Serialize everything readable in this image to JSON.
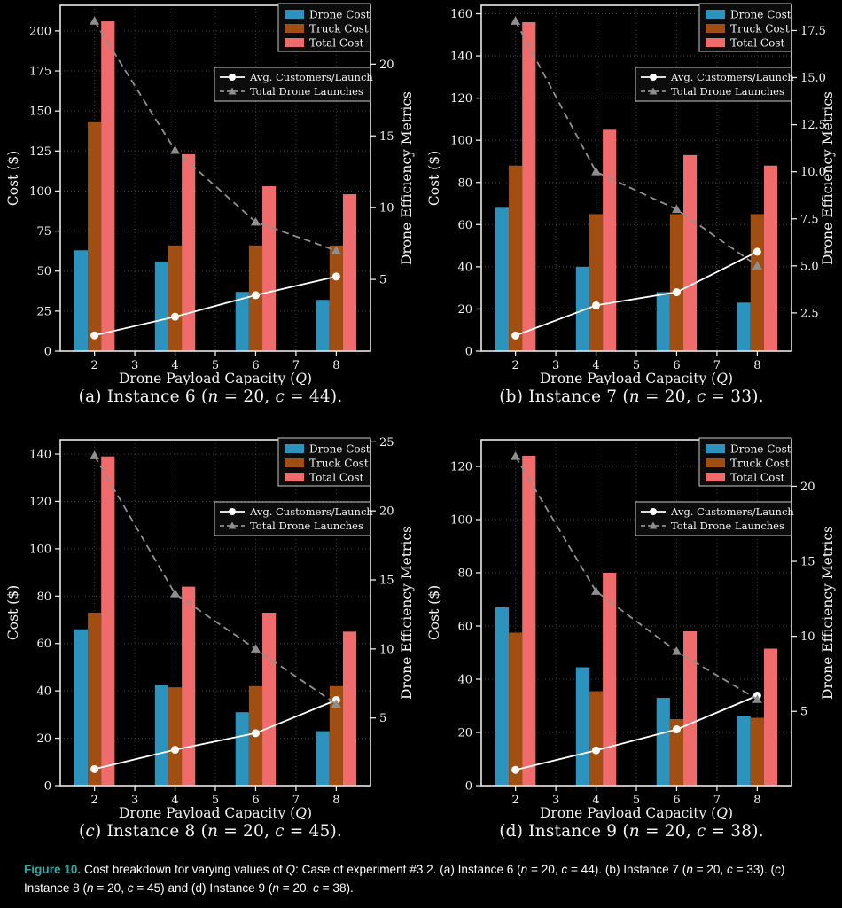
{
  "figure_caption": {
    "label": "Figure 10.",
    "text": "Cost breakdown for varying values of Q: Case of experiment #3.2. (a) Instance 6 (n = 20, c = 44). (b) Instance 7 (n = 20, c = 33). (c) Instance 8 (n = 20, c = 45) and (d) Instance 9 (n = 20, c = 38)."
  },
  "colors": {
    "background": "#000000",
    "drone_cost": "#2B93BD",
    "truck_cost": "#A04E12",
    "total_cost": "#F06C6C",
    "avg_customers_line": "#FFFFFF",
    "launches_line": "#8F8F8F",
    "caption_label_teal": "#2EA9A6",
    "grid": "#3F3F3F",
    "spine": "#E8E8E8",
    "text": "#F2F2F2",
    "legend_bg": "#0C0C0C",
    "legend_border": "#C8C8C8"
  },
  "chart_common": {
    "xlabel": "Drone Payload Capacity (Q)",
    "ylabel_left": "Cost ($)",
    "ylabel_right": "Drone Efficiency Metrics",
    "x_ticks": [
      "2",
      "3",
      "4",
      "5",
      "6",
      "7",
      "8"
    ],
    "bar_legend": [
      "Drone Cost",
      "Truck Cost",
      "Total Cost"
    ],
    "line_legend": [
      "Avg. Customers/Launch",
      "Total Drone Launches"
    ],
    "xlim": [
      1.15,
      8.85
    ]
  },
  "chart_data": [
    {
      "type": "bar",
      "caption": "(a) Instance 6 (n = 20, c = 44).",
      "categories": [
        2,
        4,
        6,
        8
      ],
      "series": [
        {
          "name": "Drone Cost",
          "kind": "bar",
          "axis": "left",
          "values": [
            63,
            56,
            37,
            32
          ]
        },
        {
          "name": "Truck Cost",
          "kind": "bar",
          "axis": "left",
          "values": [
            143,
            66,
            66,
            66
          ]
        },
        {
          "name": "Total Cost",
          "kind": "bar",
          "axis": "left",
          "values": [
            206,
            123,
            103,
            98
          ]
        },
        {
          "name": "Avg. Customers/Launch",
          "kind": "line",
          "axis": "right",
          "values": [
            1.1,
            2.4,
            3.9,
            5.2
          ]
        },
        {
          "name": "Total Drone Launches",
          "kind": "line",
          "axis": "right",
          "values": [
            23,
            14,
            9,
            7
          ]
        }
      ],
      "left_ticks": [
        0,
        25,
        50,
        75,
        100,
        125,
        150,
        175,
        200
      ],
      "left_max": 216,
      "right_ticks": [
        "5",
        "10",
        "15",
        "20"
      ],
      "right_range": [
        0,
        24.1
      ]
    },
    {
      "type": "bar",
      "caption": "(b) Instance 7 (n = 20, c = 33).",
      "categories": [
        2,
        4,
        6,
        8
      ],
      "series": [
        {
          "name": "Drone Cost",
          "kind": "bar",
          "axis": "left",
          "values": [
            68,
            40,
            28,
            23
          ]
        },
        {
          "name": "Truck Cost",
          "kind": "bar",
          "axis": "left",
          "values": [
            88,
            65,
            65,
            65
          ]
        },
        {
          "name": "Total Cost",
          "kind": "bar",
          "axis": "left",
          "values": [
            156,
            105,
            93,
            88
          ]
        },
        {
          "name": "Avg. Customers/Launch",
          "kind": "line",
          "axis": "right",
          "values": [
            1.3,
            2.9,
            3.6,
            5.75
          ]
        },
        {
          "name": "Total Drone Launches",
          "kind": "line",
          "axis": "right",
          "values": [
            18,
            10,
            8,
            5
          ]
        }
      ],
      "left_ticks": [
        0,
        20,
        40,
        60,
        80,
        100,
        120,
        140,
        160
      ],
      "left_max": 164,
      "right_ticks": [
        "2.5",
        "5.0",
        "7.5",
        "10.0",
        "12.5",
        "15.0",
        "17.5"
      ],
      "right_range": [
        0.47,
        18.84
      ]
    },
    {
      "type": "bar",
      "caption": "(c) Instance 8 (n = 20, c = 45).",
      "categories": [
        2,
        4,
        6,
        8
      ],
      "series": [
        {
          "name": "Drone Cost",
          "kind": "bar",
          "axis": "left",
          "values": [
            66,
            42.5,
            31,
            23
          ]
        },
        {
          "name": "Truck Cost",
          "kind": "bar",
          "axis": "left",
          "values": [
            73,
            41.5,
            42,
            42
          ]
        },
        {
          "name": "Total Cost",
          "kind": "bar",
          "axis": "left",
          "values": [
            139,
            84,
            73,
            65
          ]
        },
        {
          "name": "Avg. Customers/Launch",
          "kind": "line",
          "axis": "right",
          "values": [
            1.3,
            2.7,
            3.9,
            6.3
          ]
        },
        {
          "name": "Total Drone Launches",
          "kind": "line",
          "axis": "right",
          "values": [
            24,
            14,
            10,
            6
          ]
        }
      ],
      "left_ticks": [
        0,
        20,
        40,
        60,
        80,
        100,
        120,
        140
      ],
      "left_max": 146,
      "right_ticks": [
        "5",
        "10",
        "15",
        "20",
        "25"
      ],
      "right_range": [
        0.1,
        25.15
      ]
    },
    {
      "type": "bar",
      "caption": "(d) Instance 9 (n = 20, c = 38).",
      "categories": [
        2,
        4,
        6,
        8
      ],
      "series": [
        {
          "name": "Drone Cost",
          "kind": "bar",
          "axis": "left",
          "values": [
            67,
            44.5,
            33,
            26
          ]
        },
        {
          "name": "Truck Cost",
          "kind": "bar",
          "axis": "left",
          "values": [
            57.5,
            35.5,
            25,
            25.5
          ]
        },
        {
          "name": "Total Cost",
          "kind": "bar",
          "axis": "left",
          "values": [
            124,
            80,
            58,
            51.5
          ]
        },
        {
          "name": "Avg. Customers/Launch",
          "kind": "line",
          "axis": "right",
          "values": [
            1.1,
            2.4,
            3.8,
            6.05
          ]
        },
        {
          "name": "Total Drone Launches",
          "kind": "line",
          "axis": "right",
          "values": [
            22,
            13,
            9,
            5.8
          ]
        }
      ],
      "left_ticks": [
        0,
        20,
        40,
        60,
        80,
        100,
        120
      ],
      "left_max": 130,
      "right_ticks": [
        "5",
        "10",
        "15",
        "20"
      ],
      "right_range": [
        0.05,
        23.1
      ]
    }
  ]
}
